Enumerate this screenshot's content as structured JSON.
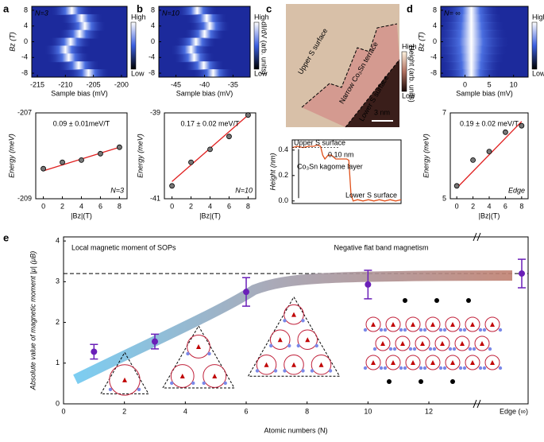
{
  "chart_data": [
    {
      "type": "heatmap",
      "panel_label": "a",
      "annotation": "N=3",
      "xlabel": "Sample bias (mV)",
      "ylabel": "Bz (T)",
      "xlim": [
        -216,
        -199
      ],
      "xticks": [
        -215,
        -210,
        -205,
        -200
      ],
      "ylim": [
        -9,
        9
      ],
      "yticks": [
        -8,
        -4,
        0,
        4,
        8
      ],
      "colorbar": {
        "high": "High",
        "low": "Low"
      }
    },
    {
      "type": "scatter",
      "xlabel": "|Bz|(T)",
      "ylabel": "Energy (meV)",
      "annotation": "0.09 ± 0.01meV/T",
      "corner_label": "N=3",
      "x": [
        0,
        2,
        4,
        6,
        8
      ],
      "values": [
        -208.3,
        -208.15,
        -208.1,
        -207.95,
        -207.8
      ],
      "fit": {
        "x": [
          0,
          8
        ],
        "y": [
          -208.35,
          -207.8
        ]
      },
      "color": "#777777",
      "fit_color": "#e02020",
      "xlim": [
        -0.8,
        8.8
      ],
      "xticks": [
        0,
        2,
        4,
        6,
        8
      ],
      "ylim": [
        -209,
        -207
      ],
      "yticks": [
        -209,
        -207
      ]
    },
    {
      "type": "heatmap",
      "panel_label": "b",
      "annotation": "N=10",
      "xlabel": "Sample bias (mV)",
      "xlim": [
        -48,
        -32
      ],
      "xticks": [
        -45,
        -40,
        -35
      ],
      "ylim": [
        -9,
        9
      ],
      "yticks": [
        -8,
        -4,
        0,
        4,
        8
      ],
      "colorbar": {
        "high": "High",
        "low": "Low",
        "title": "dI/dV (arb. units)"
      }
    },
    {
      "type": "scatter",
      "xlabel": "|Bz|(T)",
      "ylabel": "Energy (meV)",
      "annotation": "0.17 ± 0.02 meV/T",
      "corner_label": "N=10",
      "x": [
        0,
        2,
        4,
        6,
        8
      ],
      "values": [
        -40.7,
        -40.15,
        -39.85,
        -39.55,
        -39.05
      ],
      "fit": {
        "x": [
          0,
          8
        ],
        "y": [
          -40.6,
          -39.05
        ]
      },
      "color": "#777777",
      "fit_color": "#e02020",
      "xlim": [
        -0.8,
        8.8
      ],
      "xticks": [
        0,
        2,
        4,
        6,
        8
      ],
      "ylim": [
        -41,
        -39
      ],
      "yticks": [
        -41,
        -39
      ]
    },
    {
      "type": "image",
      "panel_label": "c",
      "labels": [
        "Upper S surface",
        "Narrow Co₃Sn terrace",
        "Lower S surface"
      ],
      "scale_bar": "3 nm",
      "colorbar": {
        "high": "High",
        "low": "Low",
        "title": "Height (arb. units)"
      }
    },
    {
      "type": "line",
      "ylabel": "Height (nm)",
      "x": [
        0,
        0.5,
        1,
        1.5,
        2,
        2.3,
        2.6,
        2.8,
        3.0,
        3.3,
        3.6,
        4.0,
        4.5,
        5.0,
        5.2,
        5.4,
        5.6,
        6,
        6.5,
        7,
        7.5,
        8,
        8.5,
        9,
        9.5,
        10
      ],
      "values": [
        0.42,
        0.43,
        0.42,
        0.43,
        0.43,
        0.44,
        0.43,
        0.36,
        0.33,
        0.36,
        0.36,
        0.33,
        0.33,
        0.33,
        0.32,
        0.05,
        0.0,
        0.01,
        0.0,
        0.01,
        0.0,
        0.01,
        0.0,
        0.01,
        0.0,
        0.01
      ],
      "color": "#e0501a",
      "xlim": [
        0,
        10
      ],
      "ylim": [
        -0.02,
        0.48
      ],
      "yticks": [
        {
          "value": 0,
          "label": "0.0"
        },
        0.2,
        0.4
      ],
      "annotations": [
        "Upper S surface",
        "0.10 nm",
        "Co₃Sn kagome layer",
        "Lower S surface"
      ]
    },
    {
      "type": "heatmap",
      "panel_label": "d",
      "annotation": "N= ∞",
      "xlabel": "Sample bias (mV)",
      "ylabel": "Bz (T)",
      "xlim": [
        -5,
        13
      ],
      "xticks": [
        0,
        5,
        10
      ],
      "ylim": [
        -9,
        9
      ],
      "yticks": [
        -8,
        -4,
        0,
        4,
        8
      ],
      "colorbar": {
        "high": "High",
        "low": "Low"
      }
    },
    {
      "type": "scatter",
      "xlabel": "|Bz|(T)",
      "ylabel": "Energy (meV)",
      "annotation": "0.19 ± 0.02 meV/T",
      "corner_label": "Edge",
      "x": [
        0,
        2,
        4,
        6,
        8
      ],
      "values": [
        5.3,
        5.9,
        6.1,
        6.55,
        6.7
      ],
      "fit": {
        "x": [
          0,
          8
        ],
        "y": [
          5.25,
          6.8
        ]
      },
      "color": "#777777",
      "fit_color": "#e02020",
      "xlim": [
        -0.8,
        8.8
      ],
      "xticks": [
        0,
        2,
        4,
        6,
        8
      ],
      "ylim": [
        5,
        7
      ],
      "yticks": [
        5,
        7
      ]
    },
    {
      "type": "errorbar",
      "panel_label": "e",
      "xlabel": "Atomic numbers (N)",
      "ylabel": "Absolute value of magnetic moment |μ| (μB)",
      "annotations": [
        "Local magnetic moment of SOPs",
        "Negative flat band magnetism"
      ],
      "x": [
        1,
        3,
        6,
        10
      ],
      "values": [
        1.28,
        1.53,
        2.75,
        2.93
      ],
      "errors": [
        0.18,
        0.18,
        0.35,
        0.35
      ],
      "edge": {
        "label": "Edge (∞)",
        "value": 3.2,
        "error": 0.35
      },
      "reference": 3.2,
      "color": "#6a1fb8",
      "xlim": [
        0,
        15.26
      ],
      "xticks": [
        0,
        2,
        4,
        6,
        8,
        10,
        12
      ],
      "ylim": [
        0,
        4.1
      ],
      "yticks": [
        0,
        1,
        2,
        3,
        4
      ]
    }
  ]
}
